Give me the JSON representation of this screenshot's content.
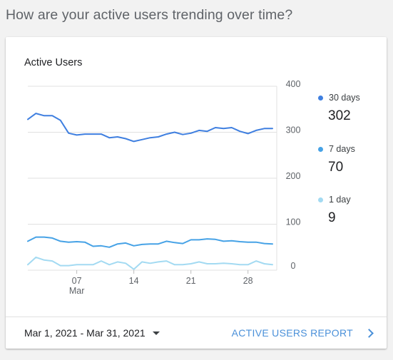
{
  "question": "How are your active users trending over time?",
  "card": {
    "title": "Active Users"
  },
  "chart_data": {
    "type": "line",
    "title": "Active Users",
    "x": [
      1,
      2,
      3,
      4,
      5,
      6,
      7,
      8,
      9,
      10,
      11,
      12,
      13,
      14,
      15,
      16,
      17,
      18,
      19,
      20,
      21,
      22,
      23,
      24,
      25,
      26,
      27,
      28,
      29,
      30,
      31
    ],
    "x_ticks": [
      {
        "value": 7,
        "label": "07",
        "sublabel": "Mar"
      },
      {
        "value": 14,
        "label": "14",
        "sublabel": ""
      },
      {
        "value": 21,
        "label": "21",
        "sublabel": ""
      },
      {
        "value": 28,
        "label": "28",
        "sublabel": ""
      }
    ],
    "y_ticks": [
      0,
      100,
      200,
      300,
      400
    ],
    "ylim": [
      0,
      400
    ],
    "grid": true,
    "y_axis_side": "right",
    "legend_placement": "right",
    "series": [
      {
        "name": "30 days",
        "color": "#3f7fe0",
        "values": [
          328,
          341,
          336,
          336,
          326,
          298,
          294,
          296,
          296,
          296,
          288,
          290,
          286,
          280,
          284,
          288,
          290,
          296,
          300,
          295,
          298,
          304,
          302,
          310,
          308,
          310,
          302,
          297,
          304,
          308,
          308
        ]
      },
      {
        "name": "7 days",
        "color": "#46a2e6",
        "values": [
          63,
          72,
          72,
          70,
          63,
          61,
          62,
          61,
          52,
          53,
          50,
          57,
          59,
          53,
          56,
          57,
          57,
          63,
          60,
          58,
          66,
          66,
          68,
          67,
          63,
          64,
          62,
          61,
          61,
          58,
          57
        ]
      },
      {
        "name": "1 day",
        "color": "#a3daf2",
        "values": [
          12,
          28,
          22,
          20,
          10,
          10,
          12,
          12,
          12,
          20,
          12,
          18,
          15,
          2,
          18,
          15,
          18,
          20,
          12,
          12,
          14,
          18,
          14,
          14,
          15,
          14,
          12,
          12,
          20,
          14,
          12
        ]
      }
    ]
  },
  "legend": {
    "items": [
      {
        "label": "30 days",
        "value": "302",
        "color": "#3f7fe0"
      },
      {
        "label": "7 days",
        "value": "70",
        "color": "#46a2e6"
      },
      {
        "label": "1 day",
        "value": "9",
        "color": "#a3daf2"
      }
    ]
  },
  "footer": {
    "date_range": "Mar 1, 2021 - Mar 31, 2021",
    "report_link": "ACTIVE USERS REPORT"
  },
  "colors": {
    "link": "#4a90d9",
    "grid": "#e0e0e0"
  }
}
